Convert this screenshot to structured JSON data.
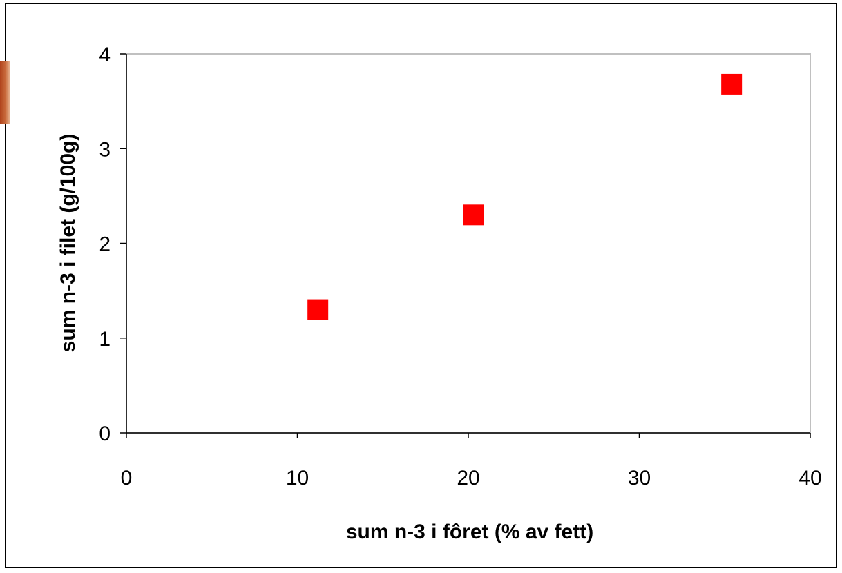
{
  "chart_data": {
    "type": "scatter",
    "title": "",
    "xlabel": "sum n-3 i fôret (% av fett)",
    "ylabel": "sum n-3 i filet (g/100g)",
    "xlim": [
      0,
      40
    ],
    "ylim": [
      0,
      4
    ],
    "xticks": [
      "0",
      "10",
      "20",
      "30",
      "40"
    ],
    "yticks": [
      "0",
      "1",
      "2",
      "3",
      "4"
    ],
    "grid": false,
    "legend": "none",
    "series": [
      {
        "points": [
          {
            "x": 11.2,
            "y": 1.3
          },
          {
            "x": 20.3,
            "y": 2.3
          },
          {
            "x": 35.4,
            "y": 3.68
          }
        ],
        "marker": "square",
        "color": "#ff0000"
      }
    ],
    "frame_color": "#c0c0c0",
    "axis_color": "#000000"
  }
}
